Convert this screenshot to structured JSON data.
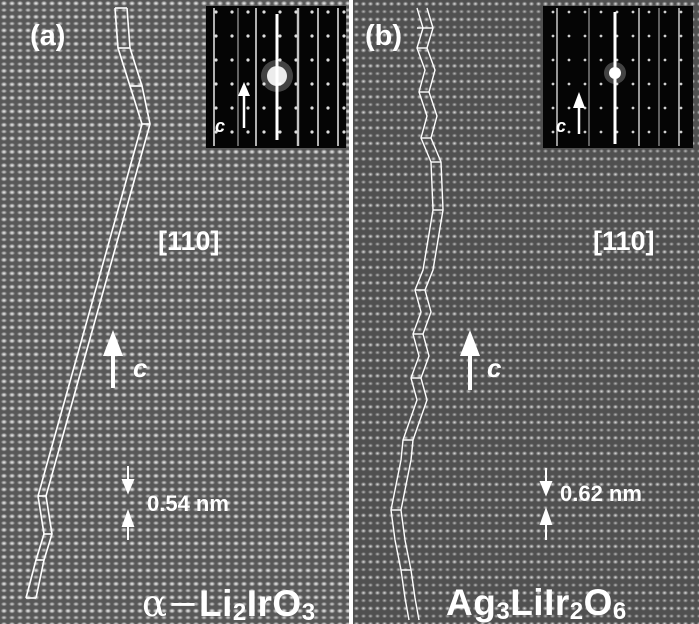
{
  "panels": {
    "a": {
      "label": "(a)",
      "zone_axis": "[110]",
      "axis_label": "c",
      "inset_axis_label": "c",
      "spacing": "0.54 nm",
      "formula_prefix": "α−",
      "formula": [
        "Li",
        "2",
        "IrO",
        "3"
      ]
    },
    "b": {
      "label": "(b)",
      "zone_axis": "[110]",
      "axis_label": "c",
      "inset_axis_label": "c",
      "spacing": "0.62 nm",
      "formula": [
        "Ag",
        "3",
        "LiIr",
        "2",
        "O",
        "6"
      ]
    }
  },
  "colors": {
    "background_a": "#6b6b6b",
    "background_b": "#5e5e5e",
    "atom_column": "#f2f2f2",
    "annotation": "#ffffff",
    "inset_background": "#050505"
  }
}
